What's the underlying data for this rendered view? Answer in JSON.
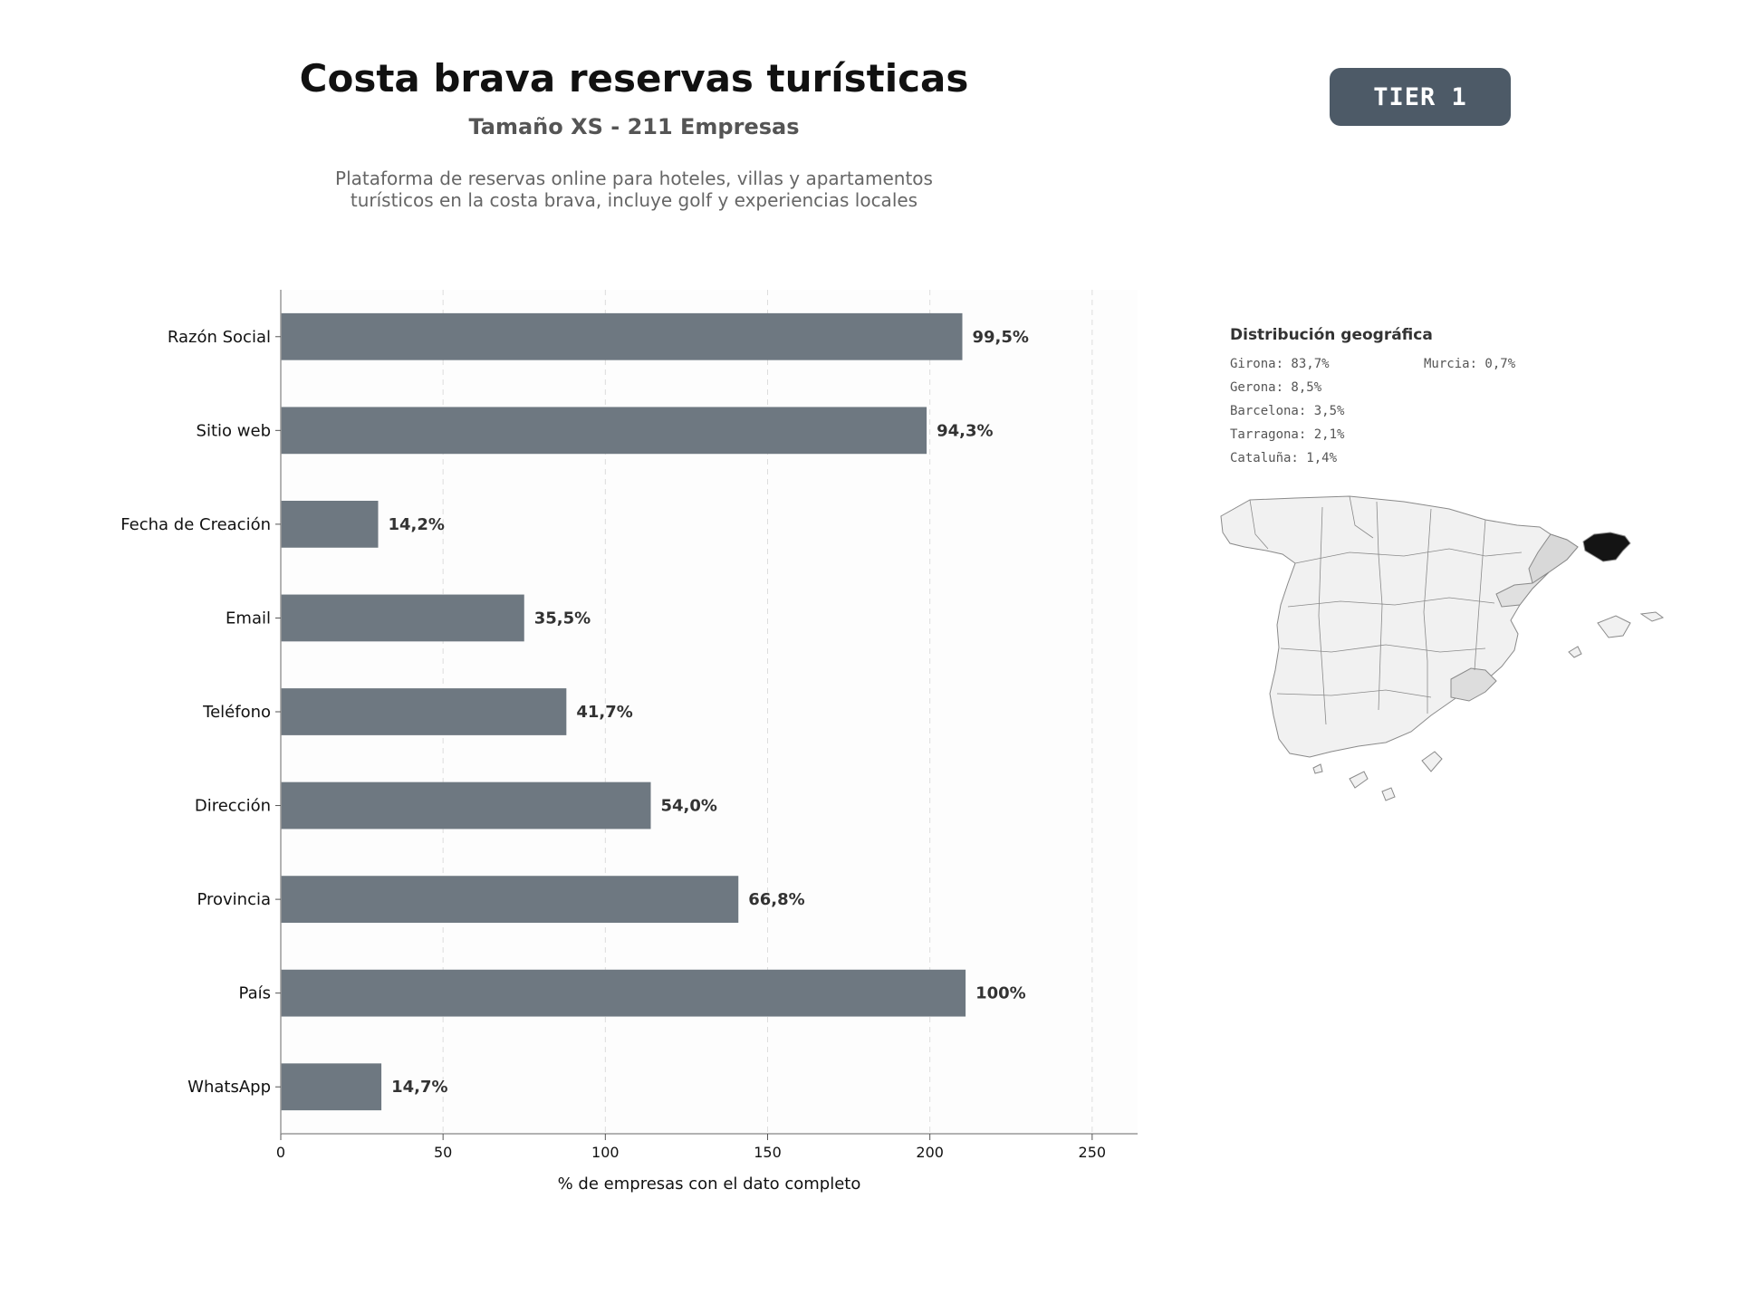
{
  "header": {
    "title": "Costa brava reservas turísticas",
    "subtitle": "Tamaño XS - 211 Empresas",
    "description_line1": "Plataforma de reservas online para hoteles, villas y apartamentos",
    "description_line2": "turísticos en la costa brava, incluye golf y experiencias locales",
    "badge": "TIER 1"
  },
  "chart_data": {
    "type": "bar",
    "orientation": "horizontal",
    "categories": [
      "Razón Social",
      "Sitio web",
      "Fecha de Creación",
      "Email",
      "Teléfono",
      "Dirección",
      "Provincia",
      "País",
      "WhatsApp"
    ],
    "values": [
      210,
      199,
      30,
      75,
      88,
      114,
      141,
      211,
      31
    ],
    "data_labels": [
      "99,5%",
      "94,3%",
      "14,2%",
      "35,5%",
      "41,7%",
      "54,0%",
      "66,8%",
      "100%",
      "14,7%"
    ],
    "xlabel": "% de empresas con el dato completo",
    "xlim": [
      0,
      264
    ],
    "xticks": [
      0,
      50,
      100,
      150,
      200,
      250
    ],
    "grid": "x-dashed",
    "bar_color": "#6e7881"
  },
  "geo": {
    "title": "Distribución geográfica",
    "items": [
      {
        "label": "Girona: 83,7%"
      },
      {
        "label": "Gerona: 8,5%"
      },
      {
        "label": "Barcelona: 3,5%"
      },
      {
        "label": "Tarragona: 2,1%"
      },
      {
        "label": "Cataluña: 1,4%"
      },
      {
        "label": "Murcia: 0,7%"
      }
    ],
    "colors": {
      "land": "#f1f1f1",
      "border": "#8a8a8a",
      "girona": "#141414",
      "barcelona": "#d8d8d8",
      "tarragona": "#e0e0e0",
      "murcia": "#dddddd"
    }
  }
}
